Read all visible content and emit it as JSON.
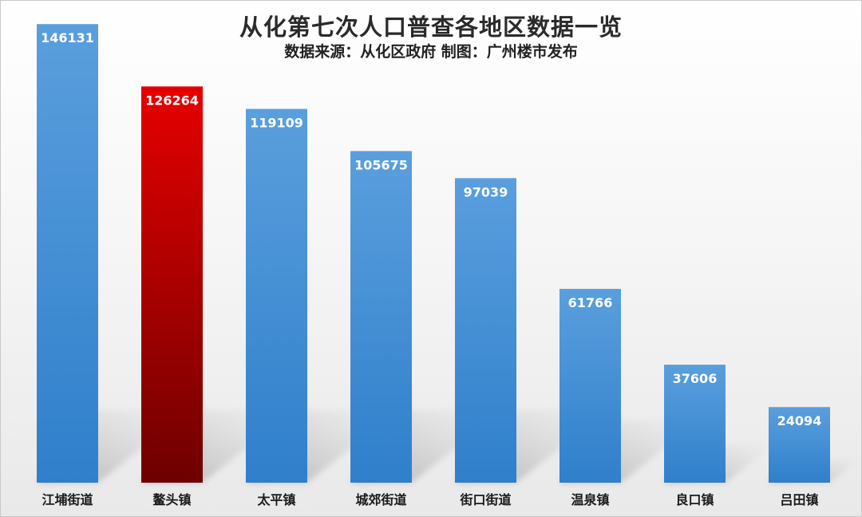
{
  "header": {
    "title": "从化第七次人口普查各地区数据一览",
    "subtitle": "数据来源：从化区政府  制图：广州楼市发布"
  },
  "colors": {
    "bar_default": "#3b8bd4",
    "bar_highlight": "#d90000",
    "label_text": "#ffffff"
  },
  "chart_data": {
    "type": "bar",
    "title": "从化第七次人口普查各地区数据一览",
    "subtitle": "数据来源：从化区政府  制图：广州楼市发布",
    "categories": [
      "江埔街道",
      "鳌头镇",
      "太平镇",
      "城郊街道",
      "街口街道",
      "温泉镇",
      "良口镇",
      "吕田镇"
    ],
    "values": [
      146131,
      126264,
      119109,
      105675,
      97039,
      61766,
      37606,
      24094
    ],
    "highlight_category": "鳌头镇",
    "data_labels": true,
    "grid": false,
    "legend": "none",
    "ylim": [
      0,
      150000
    ],
    "xlabel": "",
    "ylabel": ""
  }
}
